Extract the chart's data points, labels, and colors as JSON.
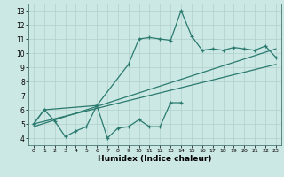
{
  "xlabel": "Humidex (Indice chaleur)",
  "x_ticks": [
    0,
    1,
    2,
    3,
    4,
    5,
    6,
    7,
    8,
    9,
    10,
    11,
    12,
    13,
    14,
    15,
    16,
    17,
    18,
    19,
    20,
    21,
    22,
    23
  ],
  "ylim": [
    3.5,
    13.5
  ],
  "xlim": [
    -0.5,
    23.5
  ],
  "yticks": [
    4,
    5,
    6,
    7,
    8,
    9,
    10,
    11,
    12,
    13
  ],
  "line_color": "#2a7a6f",
  "bg_color": "#cce8e4",
  "grid_color": "#b0d0cc",
  "line1_x": [
    0,
    1,
    2,
    3,
    4,
    5,
    6,
    7,
    8,
    9,
    10,
    11,
    12,
    13,
    14
  ],
  "line1_y": [
    5.0,
    6.0,
    5.2,
    4.1,
    4.5,
    4.8,
    6.3,
    4.0,
    4.7,
    4.8,
    5.3,
    4.8,
    4.8,
    6.5,
    6.5
  ],
  "line2_x": [
    0,
    1,
    6,
    9,
    10,
    11,
    12,
    13,
    14,
    15,
    16,
    17,
    18,
    19,
    20,
    21,
    22,
    23
  ],
  "line2_y": [
    5.0,
    6.0,
    6.3,
    9.2,
    11.0,
    11.1,
    11.0,
    10.9,
    13.0,
    11.2,
    10.2,
    10.3,
    10.2,
    10.4,
    10.3,
    10.2,
    10.5,
    9.7
  ],
  "line3_x": [
    0,
    23
  ],
  "line3_y": [
    5.0,
    9.2
  ],
  "line4_x": [
    0,
    23
  ],
  "line4_y": [
    4.8,
    10.3
  ]
}
